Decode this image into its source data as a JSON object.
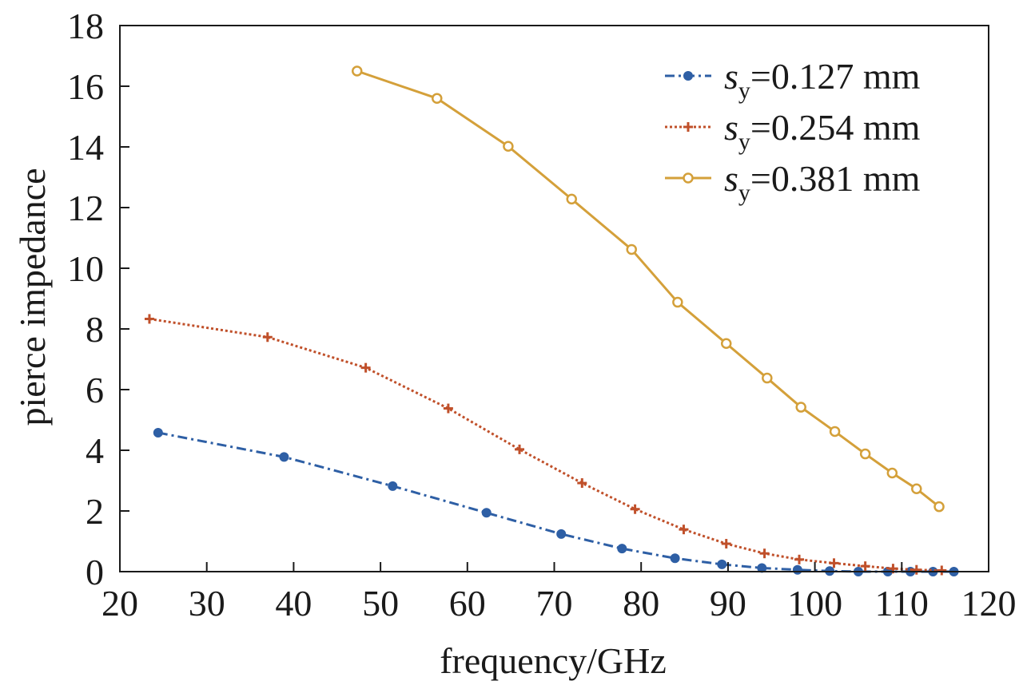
{
  "chart_data": {
    "type": "line",
    "xlabel": "frequency/GHz",
    "ylabel": "pierce impedance",
    "xlim": [
      20,
      120
    ],
    "ylim": [
      0,
      18
    ],
    "x_ticks": [
      20,
      30,
      40,
      50,
      60,
      70,
      80,
      90,
      100,
      110,
      120
    ],
    "y_ticks": [
      0,
      2,
      4,
      6,
      8,
      10,
      12,
      14,
      16,
      18
    ],
    "grid": false,
    "legend_position": "top-right",
    "series": [
      {
        "name": "sy=0.127 mm",
        "legend_symbol": "s",
        "legend_subscript": "y",
        "legend_value": "=0.127 mm",
        "color": "#2e5fa5",
        "line_style": "dash-dot",
        "marker": "filled-circle",
        "points": [
          [
            24.4,
            4.58
          ],
          [
            38.9,
            3.78
          ],
          [
            51.4,
            2.82
          ],
          [
            62.2,
            1.94
          ],
          [
            70.8,
            1.24
          ],
          [
            77.8,
            0.76
          ],
          [
            83.9,
            0.44
          ],
          [
            89.3,
            0.24
          ],
          [
            93.9,
            0.12
          ],
          [
            98.0,
            0.06
          ],
          [
            101.7,
            0.02
          ],
          [
            105.0,
            0.0
          ],
          [
            108.4,
            0.0
          ],
          [
            111.0,
            0.0
          ],
          [
            113.6,
            0.0
          ],
          [
            116.0,
            0.0
          ]
        ]
      },
      {
        "name": "sy=0.254 mm",
        "legend_symbol": "s",
        "legend_subscript": "y",
        "legend_value": "=0.254 mm",
        "color": "#c0502a",
        "line_style": "dotted",
        "marker": "plus",
        "points": [
          [
            23.4,
            8.33
          ],
          [
            37.0,
            7.73
          ],
          [
            48.3,
            6.72
          ],
          [
            57.8,
            5.38
          ],
          [
            66.0,
            4.03
          ],
          [
            73.2,
            2.92
          ],
          [
            79.3,
            2.06
          ],
          [
            84.9,
            1.39
          ],
          [
            89.8,
            0.92
          ],
          [
            94.2,
            0.6
          ],
          [
            98.2,
            0.4
          ],
          [
            102.2,
            0.28
          ],
          [
            105.8,
            0.18
          ],
          [
            109.0,
            0.1
          ],
          [
            111.7,
            0.06
          ],
          [
            114.6,
            0.04
          ]
        ]
      },
      {
        "name": "sy=0.381 mm",
        "legend_symbol": "s",
        "legend_subscript": "y",
        "legend_value": "=0.381 mm",
        "color": "#d4a03a",
        "line_style": "solid",
        "marker": "open-circle",
        "points": [
          [
            47.3,
            16.5
          ],
          [
            56.5,
            15.6
          ],
          [
            64.7,
            14.02
          ],
          [
            72.0,
            12.28
          ],
          [
            78.9,
            10.62
          ],
          [
            84.2,
            8.88
          ],
          [
            89.8,
            7.52
          ],
          [
            94.5,
            6.38
          ],
          [
            98.4,
            5.42
          ],
          [
            102.3,
            4.62
          ],
          [
            105.8,
            3.88
          ],
          [
            108.9,
            3.25
          ],
          [
            111.7,
            2.73
          ],
          [
            114.3,
            2.14
          ]
        ]
      }
    ]
  }
}
